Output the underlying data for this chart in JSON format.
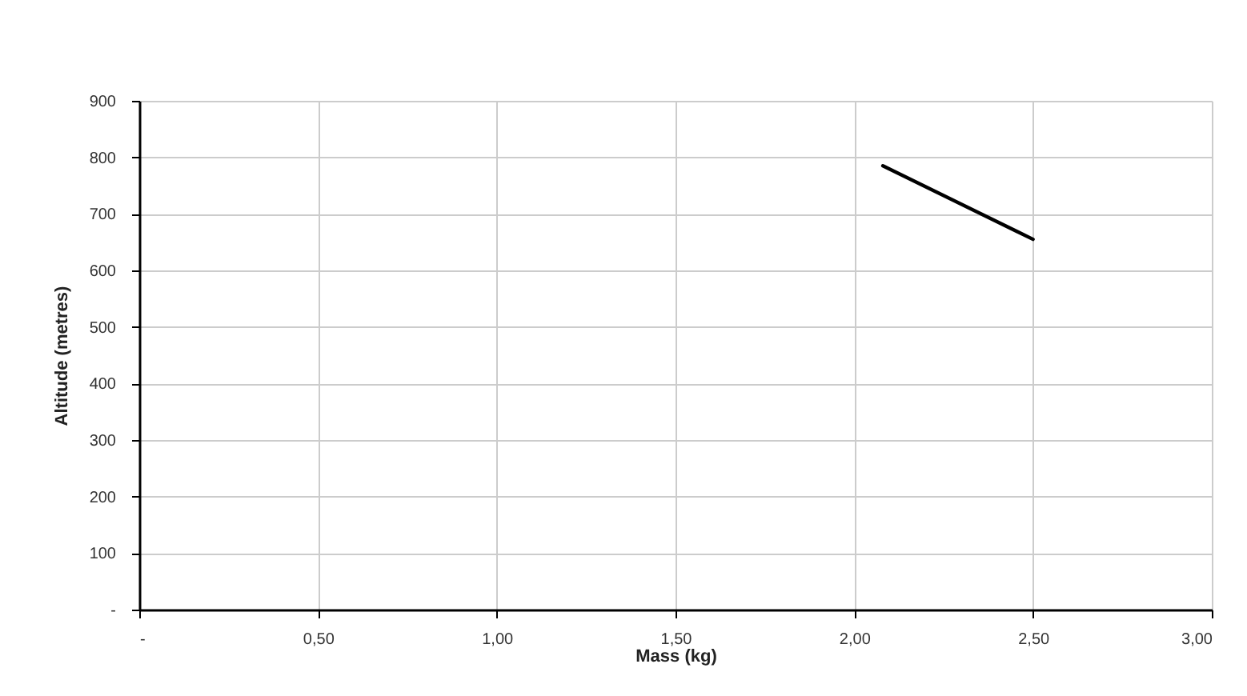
{
  "chart_data": {
    "type": "line",
    "xlabel": "Mass (kg)",
    "ylabel": "Altitude (metres)",
    "x": [
      2.08,
      2.5
    ],
    "series": [
      {
        "color": "#000000",
        "values": [
          785,
          655
        ]
      }
    ],
    "xlim": [
      0,
      3
    ],
    "xticks": [
      {
        "value": 0,
        "label": "-"
      },
      {
        "value": 0.5,
        "label": "0,50"
      },
      {
        "value": 1,
        "label": "1,00"
      },
      {
        "value": 1.5,
        "label": "1,50"
      },
      {
        "value": 2,
        "label": "2,00"
      },
      {
        "value": 2.5,
        "label": "2,50"
      },
      {
        "value": 3,
        "label": "3,00"
      }
    ],
    "ylim": [
      0,
      900
    ],
    "yticks": [
      {
        "value": 0,
        "label": "-"
      },
      100,
      200,
      300,
      400,
      500,
      600,
      700,
      800,
      900
    ],
    "grid": true,
    "legend": false,
    "marker": "none",
    "line_style": "solid"
  }
}
